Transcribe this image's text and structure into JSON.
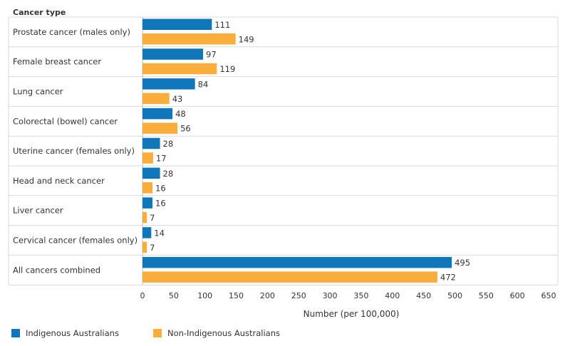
{
  "chart_data": {
    "type": "bar",
    "orientation": "horizontal",
    "row_header": "Cancer type",
    "categories": [
      "Prostate cancer (males only)",
      "Female breast cancer",
      "Lung cancer",
      "Colorectal (bowel) cancer",
      "Uterine cancer (females only)",
      "Head and neck cancer",
      "Liver cancer",
      "Cervical cancer (females only)",
      "All cancers combined"
    ],
    "series": [
      {
        "name": "Indigenous Australians",
        "color": "#0f76b9",
        "values": [
          111,
          97,
          84,
          48,
          28,
          28,
          16,
          14,
          495
        ]
      },
      {
        "name": "Non-Indigenous Australians",
        "color": "#f9ad3b",
        "values": [
          149,
          119,
          43,
          56,
          17,
          16,
          7,
          7,
          472
        ]
      }
    ],
    "xlabel": "Number (per 100,000)",
    "xlim": [
      0,
      650
    ],
    "xticks": [
      0,
      50,
      100,
      150,
      200,
      250,
      300,
      350,
      400,
      450,
      500,
      550,
      600,
      650
    ],
    "legend_position": "bottom-left"
  }
}
